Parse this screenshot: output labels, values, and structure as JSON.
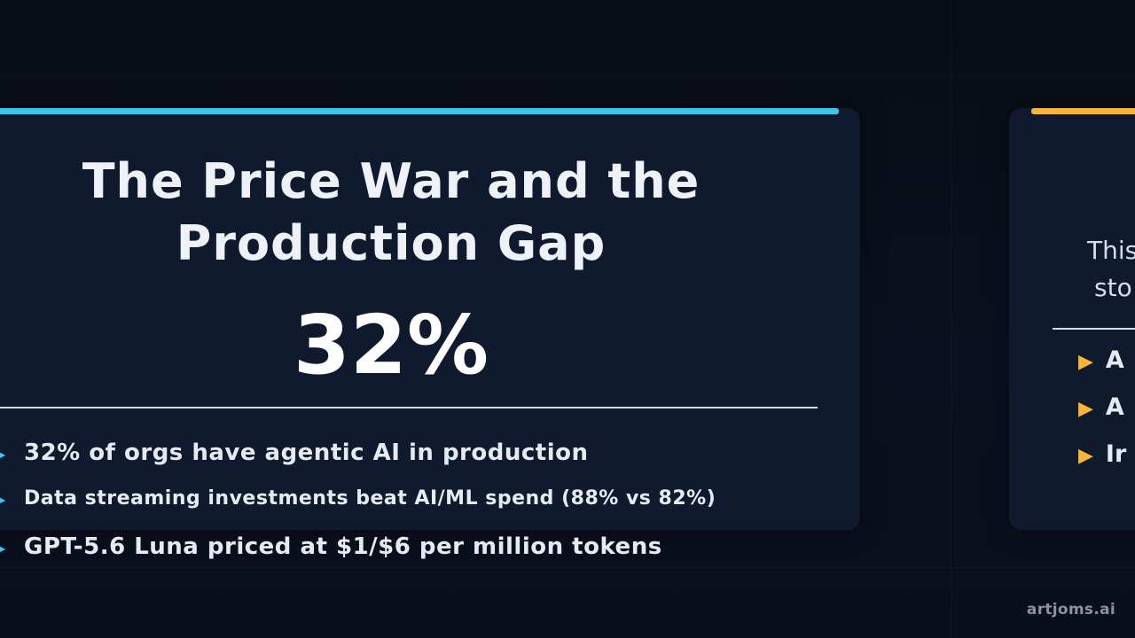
{
  "main_card": {
    "accent_color": "#3fc4ee",
    "title_line_1": "The Price War and the",
    "title_line_2": "Production Gap",
    "stat": "32%",
    "bullet_icon": "play-arrow-icon",
    "bullets": [
      "32% of orgs have agentic AI in production",
      "Data streaming investments beat AI/ML spend (88% vs 82%)",
      "GPT-5.6 Luna priced at $1/$6 per million tokens"
    ]
  },
  "right_card": {
    "accent_color": "#f5b63a",
    "intro_line_1": "This",
    "intro_line_2": "sto",
    "bullet_icon": "play-arrow-icon",
    "bullets": [
      "A",
      "A",
      "Ir"
    ]
  },
  "watermark": "artjoms.ai"
}
